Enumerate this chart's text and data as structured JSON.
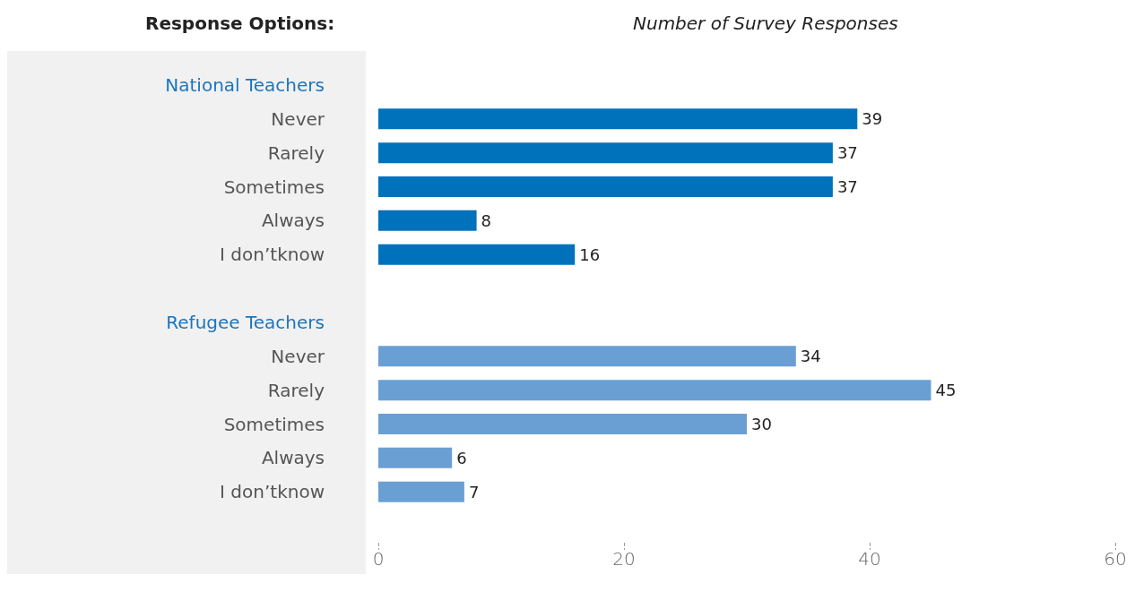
{
  "chart_data": {
    "type": "bar",
    "orientation": "horizontal",
    "xlabel": "Number of Survey Responses",
    "ylabel": "Response Options:",
    "categories": [
      "National Teachers",
      "Never",
      "Rarely",
      "Sometimes",
      "Always",
      "I don’tknow",
      null,
      "Refugee Teachers",
      "Never",
      "Rarely",
      "Sometimes",
      "Always",
      "I don’tknow",
      null
    ],
    "series": [
      {
        "color": "#0072bc",
        "values": [
          null,
          39,
          37,
          37,
          8,
          16,
          null,
          null,
          null,
          null,
          null,
          null,
          null,
          null
        ]
      },
      {
        "color": "#6a9fd4",
        "values": [
          null,
          null,
          null,
          null,
          null,
          null,
          null,
          null,
          34,
          45,
          30,
          6,
          7,
          null
        ]
      }
    ],
    "xlim": [
      0,
      60
    ],
    "xticks": [
      0,
      20,
      40,
      60
    ],
    "data_labels": true
  }
}
